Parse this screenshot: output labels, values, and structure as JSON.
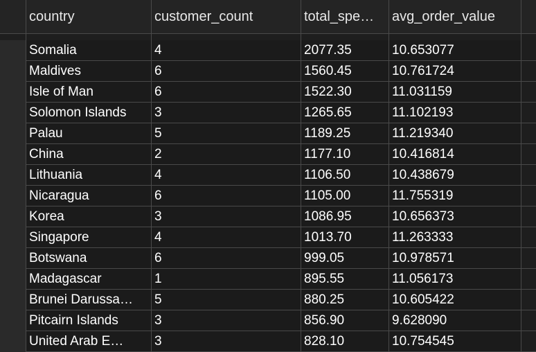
{
  "columns": [
    "country",
    "customer_count",
    "total_spe…",
    "avg_order_value"
  ],
  "rows": [
    [
      "Somalia",
      "4",
      "2077.35",
      "10.653077"
    ],
    [
      "Maldives",
      "6",
      "1560.45",
      "10.761724"
    ],
    [
      "Isle of Man",
      "6",
      "1522.30",
      "11.031159"
    ],
    [
      "Solomon Islands",
      "3",
      "1265.65",
      "11.102193"
    ],
    [
      "Palau",
      "5",
      "1189.25",
      "11.219340"
    ],
    [
      "China",
      "2",
      "1177.10",
      "10.416814"
    ],
    [
      "Lithuania",
      "4",
      "1106.50",
      "10.438679"
    ],
    [
      "Nicaragua",
      "6",
      "1105.00",
      "11.755319"
    ],
    [
      "Korea",
      "3",
      "1086.95",
      "10.656373"
    ],
    [
      "Singapore",
      "4",
      "1013.70",
      "11.263333"
    ],
    [
      "Botswana",
      "6",
      "999.05",
      "10.978571"
    ],
    [
      "Madagascar",
      "1",
      "895.55",
      "11.056173"
    ],
    [
      "Brunei Darussa…",
      "5",
      "880.25",
      "10.605422"
    ],
    [
      "Pitcairn Islands",
      "3",
      "856.90",
      "9.628090"
    ],
    [
      "United Arab E…",
      "3",
      "828.10",
      "10.754545"
    ]
  ]
}
